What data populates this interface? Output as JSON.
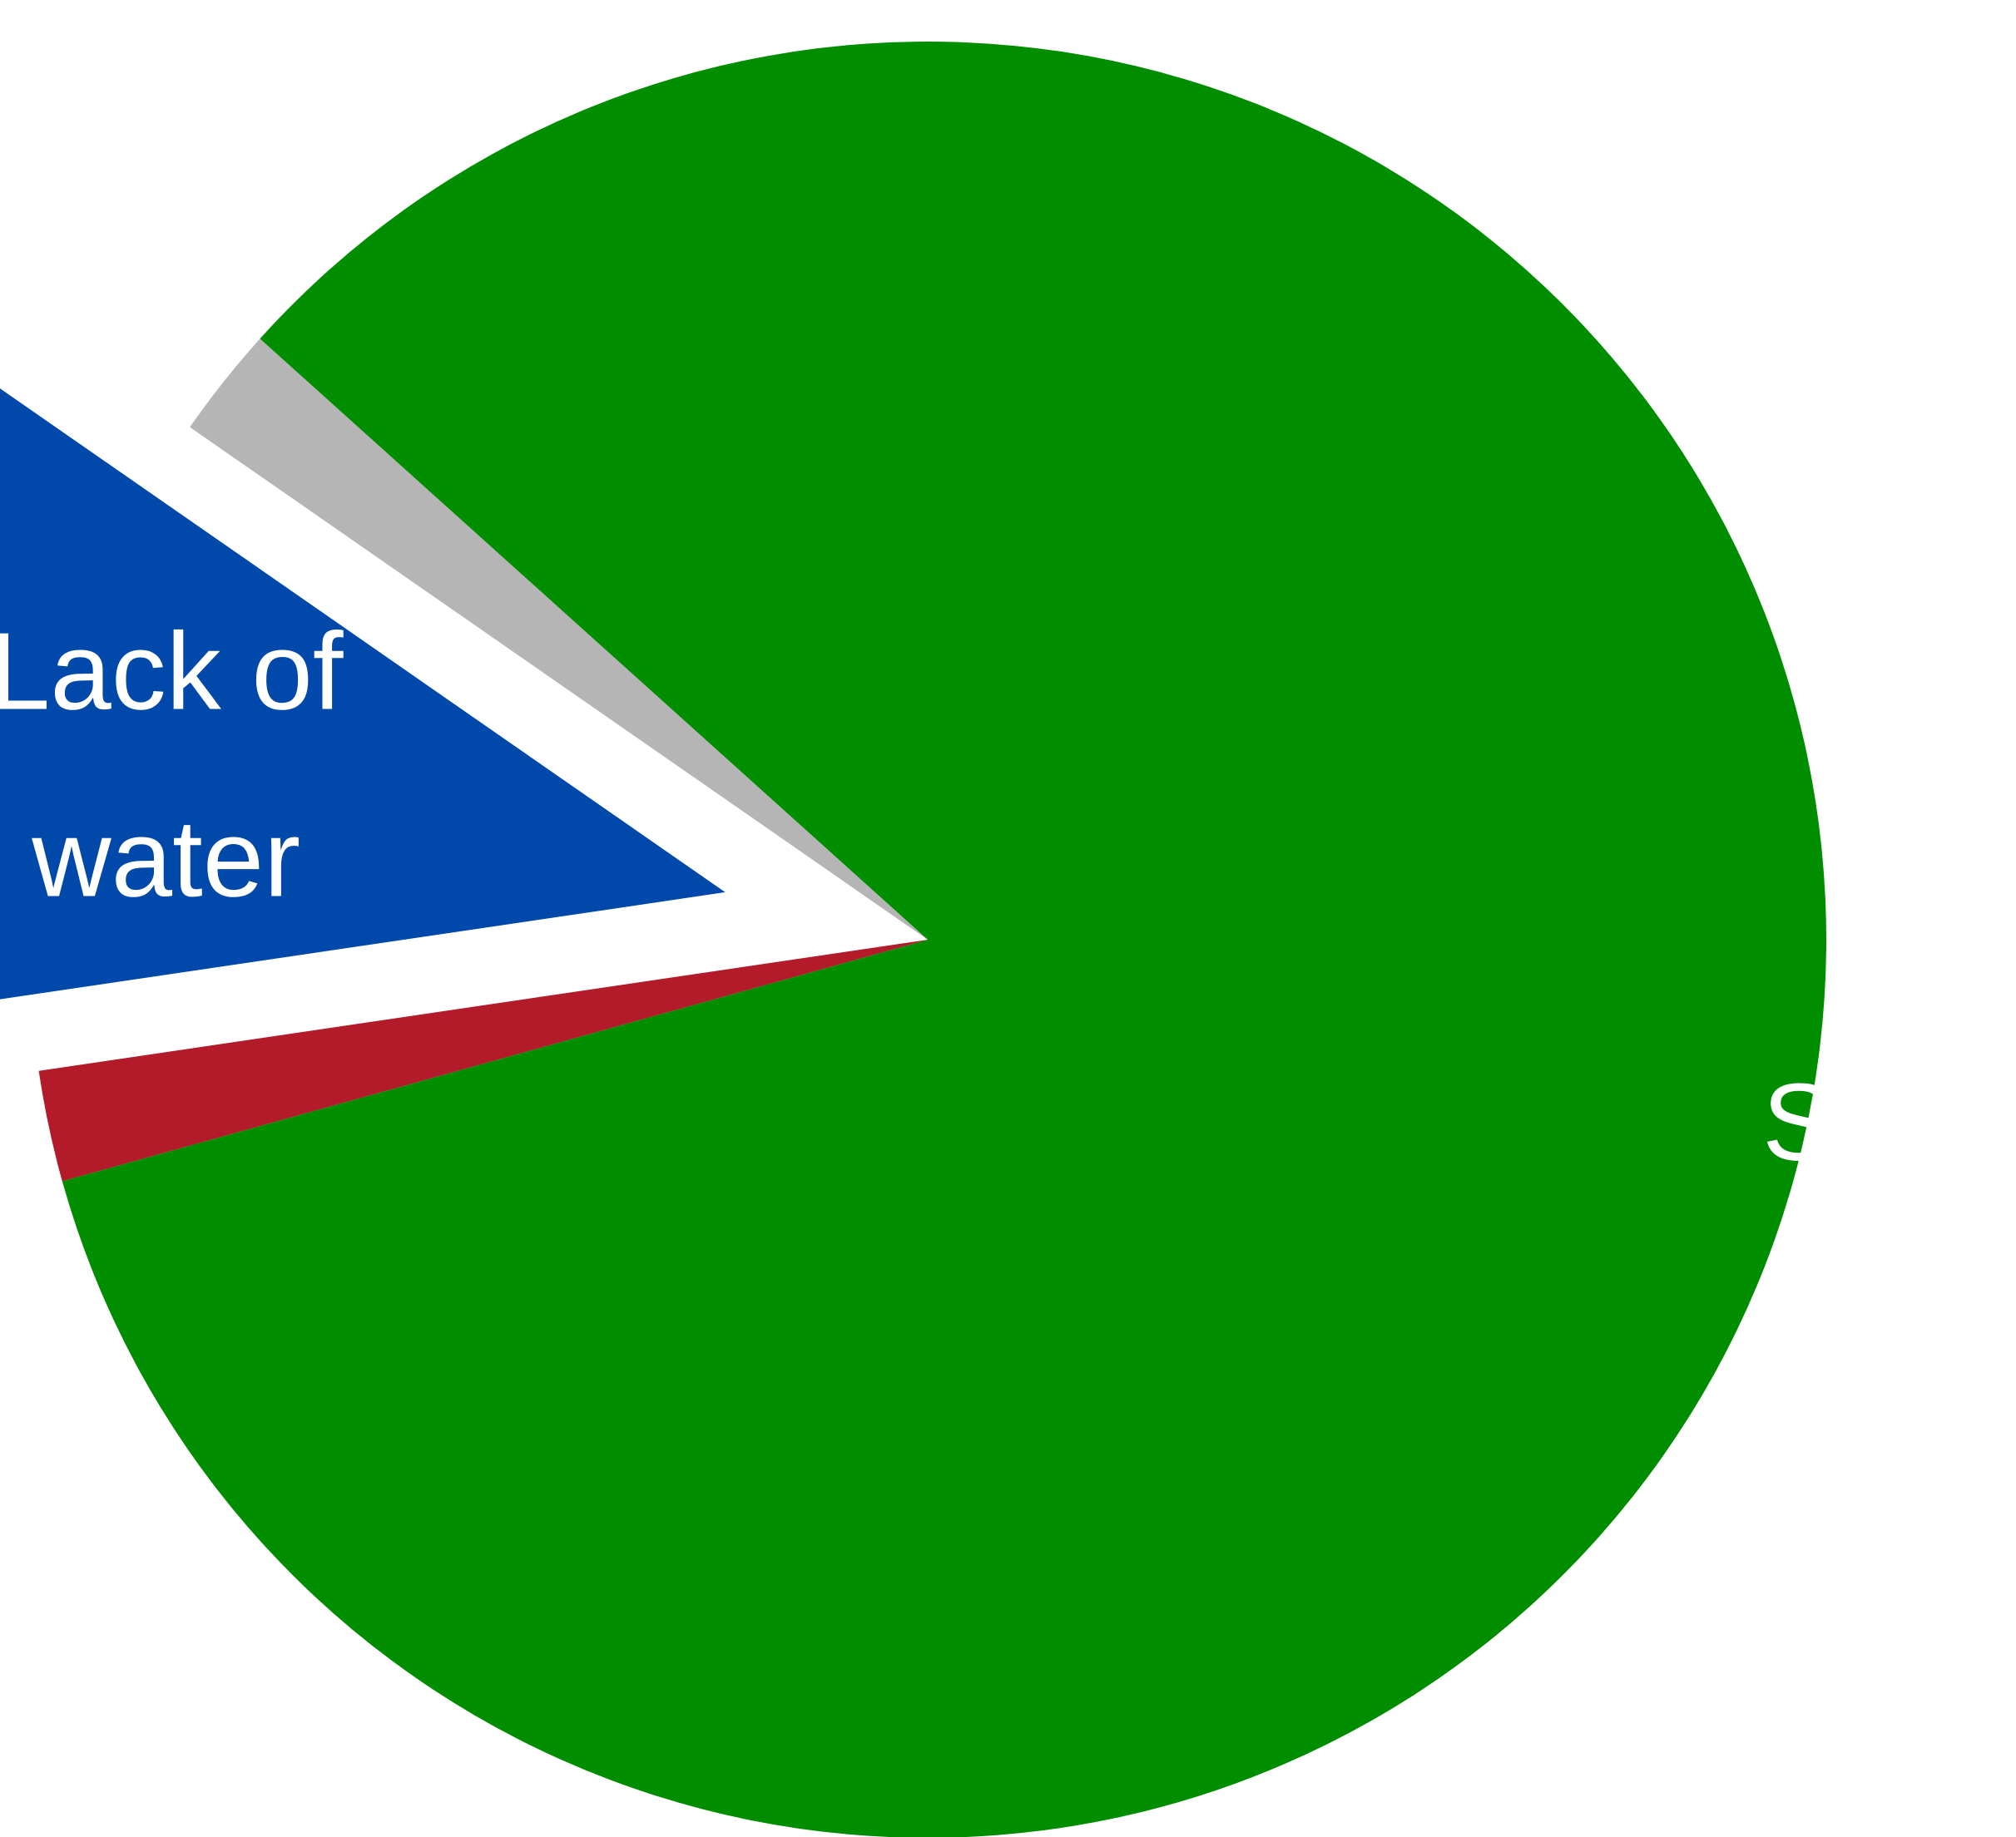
{
  "chart_data": {
    "type": "pie",
    "title": "",
    "slices": [
      {
        "label": "Sports",
        "value": 84.0,
        "color": "#008e00",
        "exploded": false,
        "show_label": true
      },
      {
        "label": "",
        "value": 2.0,
        "color": "#b31b2b",
        "exploded": false,
        "show_label": false
      },
      {
        "label": "Lack of water",
        "value": 12.0,
        "color": "#0048aa",
        "exploded": true,
        "show_label": true,
        "highlighted": true
      },
      {
        "label": "",
        "value": 2.0,
        "color": "#b5b5b5",
        "exploded": false,
        "show_label": false
      }
    ],
    "start_angle_deg": 138.0,
    "direction": "clockwise",
    "highlight_outline": "dashed",
    "highlight_outline_color": "#222222",
    "label_color": "#ffffff",
    "legend": "none"
  }
}
